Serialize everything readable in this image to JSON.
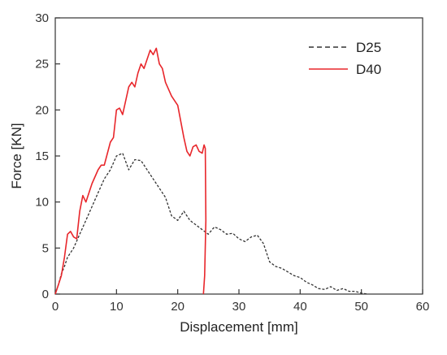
{
  "chart_data": {
    "type": "line",
    "title": "",
    "xlabel": "Displacement [mm]",
    "ylabel": "Force [KN]",
    "xlim": [
      0,
      60
    ],
    "ylim": [
      0,
      30
    ],
    "x_ticks": [
      0,
      10,
      20,
      30,
      40,
      50,
      60
    ],
    "y_ticks": [
      0,
      5,
      10,
      15,
      20,
      25,
      30
    ],
    "x_tick_labels": [
      "0",
      "10",
      "20",
      "30",
      "40",
      "50",
      "60"
    ],
    "y_tick_labels": [
      "0",
      "5",
      "10",
      "15",
      "20",
      "25",
      "30"
    ],
    "grid": false,
    "legend_position": "top-right",
    "series": [
      {
        "name": "D25",
        "color": "#333333",
        "line_style": "dashed",
        "points": [
          [
            0,
            0
          ],
          [
            0.5,
            1.0
          ],
          [
            1.0,
            2.2
          ],
          [
            1.5,
            3.0
          ],
          [
            2.0,
            4.0
          ],
          [
            3.0,
            5.0
          ],
          [
            4.0,
            6.5
          ],
          [
            5.0,
            8.0
          ],
          [
            6.0,
            9.5
          ],
          [
            7.0,
            11.0
          ],
          [
            8.0,
            12.5
          ],
          [
            9.0,
            13.5
          ],
          [
            10.0,
            15.0
          ],
          [
            11.0,
            15.3
          ],
          [
            12.0,
            13.5
          ],
          [
            13.0,
            14.6
          ],
          [
            14.0,
            14.5
          ],
          [
            15.0,
            13.5
          ],
          [
            16.0,
            12.5
          ],
          [
            17.0,
            11.5
          ],
          [
            18.0,
            10.5
          ],
          [
            19.0,
            8.5
          ],
          [
            20.0,
            8.0
          ],
          [
            21.0,
            9.0
          ],
          [
            22.0,
            8.0
          ],
          [
            23.0,
            7.5
          ],
          [
            24.0,
            7.0
          ],
          [
            25.0,
            6.5
          ],
          [
            26.0,
            7.3
          ],
          [
            27.0,
            7.0
          ],
          [
            28.0,
            6.5
          ],
          [
            29.0,
            6.6
          ],
          [
            30.0,
            6.0
          ],
          [
            31.0,
            5.7
          ],
          [
            32.0,
            6.2
          ],
          [
            33.0,
            6.4
          ],
          [
            34.0,
            5.5
          ],
          [
            35.0,
            3.5
          ],
          [
            36.0,
            3.0
          ],
          [
            37.0,
            2.8
          ],
          [
            38.0,
            2.4
          ],
          [
            39.0,
            2.0
          ],
          [
            40.0,
            1.8
          ],
          [
            41.0,
            1.3
          ],
          [
            42.0,
            1.0
          ],
          [
            43.0,
            0.6
          ],
          [
            44.0,
            0.5
          ],
          [
            45.0,
            0.8
          ],
          [
            46.0,
            0.4
          ],
          [
            47.0,
            0.6
          ],
          [
            48.0,
            0.3
          ],
          [
            49.0,
            0.3
          ],
          [
            50.0,
            0.1
          ],
          [
            51.0,
            0.0
          ]
        ]
      },
      {
        "name": "D40",
        "color": "#e8262b",
        "line_style": "solid",
        "points": [
          [
            0,
            0
          ],
          [
            0.5,
            1.0
          ],
          [
            1.0,
            2.0
          ],
          [
            1.5,
            4.0
          ],
          [
            2.0,
            6.5
          ],
          [
            2.5,
            6.8
          ],
          [
            3.0,
            6.2
          ],
          [
            3.5,
            6.0
          ],
          [
            4.0,
            9.0
          ],
          [
            4.5,
            10.7
          ],
          [
            5.0,
            10.0
          ],
          [
            6.0,
            12.0
          ],
          [
            7.0,
            13.5
          ],
          [
            7.5,
            14.0
          ],
          [
            8.0,
            14.0
          ],
          [
            9.0,
            16.5
          ],
          [
            9.5,
            17.0
          ],
          [
            10.0,
            20.0
          ],
          [
            10.5,
            20.2
          ],
          [
            11.0,
            19.5
          ],
          [
            12.0,
            22.5
          ],
          [
            12.5,
            23.0
          ],
          [
            13.0,
            22.5
          ],
          [
            13.5,
            24.0
          ],
          [
            14.0,
            25.0
          ],
          [
            14.5,
            24.5
          ],
          [
            15.0,
            25.5
          ],
          [
            15.5,
            26.5
          ],
          [
            16.0,
            26.0
          ],
          [
            16.5,
            26.7
          ],
          [
            17.0,
            25.0
          ],
          [
            17.5,
            24.5
          ],
          [
            18.0,
            23.0
          ],
          [
            19.0,
            21.5
          ],
          [
            20.0,
            20.5
          ],
          [
            21.0,
            17.0
          ],
          [
            21.5,
            15.5
          ],
          [
            22.0,
            15.0
          ],
          [
            22.5,
            16.0
          ],
          [
            23.0,
            16.2
          ],
          [
            23.5,
            15.5
          ],
          [
            24.0,
            15.3
          ],
          [
            24.3,
            16.2
          ],
          [
            24.5,
            15.8
          ],
          [
            24.6,
            8.0
          ],
          [
            24.4,
            2.0
          ],
          [
            24.2,
            0.0
          ]
        ]
      }
    ]
  }
}
